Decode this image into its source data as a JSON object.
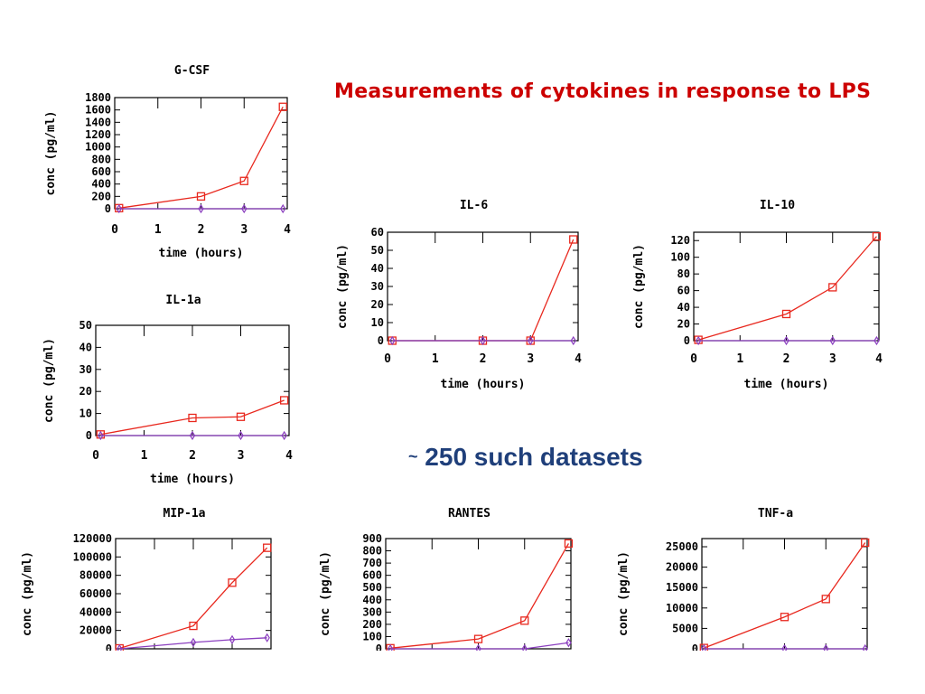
{
  "slide": {
    "title": "Measurements of cytokines in response to LPS",
    "note_tilde": "~",
    "note_text": "250 such datasets"
  },
  "colors": {
    "treated": "#e8281e",
    "control": "#8b3fbf",
    "title": "#cc0000",
    "note": "#1f3f7a"
  },
  "chart_data": [
    {
      "id": "gcsf",
      "type": "line",
      "title": "G-CSF",
      "xlabel": "time (hours)",
      "ylabel": "conc (pg/ml)",
      "xlim": [
        0,
        4
      ],
      "ylim": [
        0,
        1800
      ],
      "x_ticks": [
        0,
        1,
        2,
        3,
        4
      ],
      "y_ticks": [
        0,
        200,
        400,
        600,
        800,
        1000,
        1200,
        1400,
        1600,
        1800
      ],
      "series": [
        {
          "x": [
            0.1,
            2,
            3,
            3.9
          ],
          "values": [
            10,
            200,
            450,
            1650
          ]
        },
        {
          "x": [
            0.1,
            2,
            3,
            3.9
          ],
          "values": [
            0,
            0,
            0,
            0
          ]
        }
      ]
    },
    {
      "id": "il1a",
      "type": "line",
      "title": "IL-1a",
      "xlabel": "time (hours)",
      "ylabel": "conc (pg/ml)",
      "xlim": [
        0,
        4
      ],
      "ylim": [
        0,
        50
      ],
      "x_ticks": [
        0,
        1,
        2,
        3,
        4
      ],
      "y_ticks": [
        0,
        10,
        20,
        30,
        40,
        50
      ],
      "series": [
        {
          "x": [
            0.1,
            2,
            3,
            3.9
          ],
          "values": [
            0.5,
            8,
            8.5,
            16
          ]
        },
        {
          "x": [
            0.1,
            2,
            3,
            3.9
          ],
          "values": [
            0,
            0,
            0,
            0
          ]
        }
      ]
    },
    {
      "id": "il6",
      "type": "line",
      "title": "IL-6",
      "xlabel": "time (hours)",
      "ylabel": "conc (pg/ml)",
      "xlim": [
        0,
        4
      ],
      "ylim": [
        0,
        60
      ],
      "x_ticks": [
        0,
        1,
        2,
        3,
        4
      ],
      "y_ticks": [
        0,
        10,
        20,
        30,
        40,
        50,
        60
      ],
      "series": [
        {
          "x": [
            0.1,
            2,
            3,
            3.9
          ],
          "values": [
            0,
            0,
            0,
            56
          ]
        },
        {
          "x": [
            0.1,
            2,
            3,
            3.9
          ],
          "values": [
            0,
            0,
            0,
            0
          ]
        }
      ]
    },
    {
      "id": "il10",
      "type": "line",
      "title": "IL-10",
      "xlabel": "time (hours)",
      "ylabel": "conc (pg/ml)",
      "xlim": [
        0,
        4
      ],
      "ylim": [
        0,
        130
      ],
      "x_ticks": [
        0,
        1,
        2,
        3,
        4
      ],
      "y_ticks": [
        0,
        20,
        40,
        60,
        80,
        100,
        120
      ],
      "series": [
        {
          "x": [
            0.1,
            2,
            3,
            3.95
          ],
          "values": [
            1,
            32,
            64,
            125
          ]
        },
        {
          "x": [
            0.1,
            2,
            3,
            3.95
          ],
          "values": [
            0,
            0,
            0,
            0
          ]
        }
      ]
    },
    {
      "id": "mip1a",
      "type": "line",
      "title": "MIP-1a",
      "xlabel": "",
      "ylabel": "conc (pg/ml)",
      "xlim": [
        0,
        4
      ],
      "ylim": [
        0,
        120000
      ],
      "x_ticks": [],
      "y_ticks": [
        0,
        20000,
        40000,
        60000,
        80000,
        100000,
        120000
      ],
      "series": [
        {
          "x": [
            0.1,
            2,
            3,
            3.9
          ],
          "values": [
            500,
            25000,
            72000,
            110000
          ]
        },
        {
          "x": [
            0.1,
            2,
            3,
            3.9
          ],
          "values": [
            0,
            7000,
            10000,
            12000
          ]
        }
      ]
    },
    {
      "id": "rantes",
      "type": "line",
      "title": "RANTES",
      "xlabel": "",
      "ylabel": "conc (pg/ml)",
      "xlim": [
        0,
        4
      ],
      "ylim": [
        0,
        900
      ],
      "x_ticks": [],
      "y_ticks": [
        0,
        100,
        200,
        300,
        400,
        500,
        600,
        700,
        800,
        900
      ],
      "series": [
        {
          "x": [
            0.1,
            2,
            3,
            3.95
          ],
          "values": [
            5,
            80,
            230,
            860
          ]
        },
        {
          "x": [
            0.1,
            2,
            3,
            3.95
          ],
          "values": [
            0,
            0,
            0,
            50
          ]
        }
      ]
    },
    {
      "id": "tnfa",
      "type": "line",
      "title": "TNF-a",
      "xlabel": "",
      "ylabel": "conc (pg/ml)",
      "xlim": [
        0,
        4
      ],
      "ylim": [
        0,
        27000
      ],
      "x_ticks": [],
      "y_ticks": [
        0,
        5000,
        10000,
        15000,
        20000,
        25000
      ],
      "series": [
        {
          "x": [
            0.05,
            2,
            3,
            3.95
          ],
          "values": [
            200,
            7800,
            12200,
            26000
          ]
        },
        {
          "x": [
            0.05,
            2,
            3,
            3.95
          ],
          "values": [
            0,
            0,
            0,
            0
          ]
        }
      ]
    }
  ]
}
